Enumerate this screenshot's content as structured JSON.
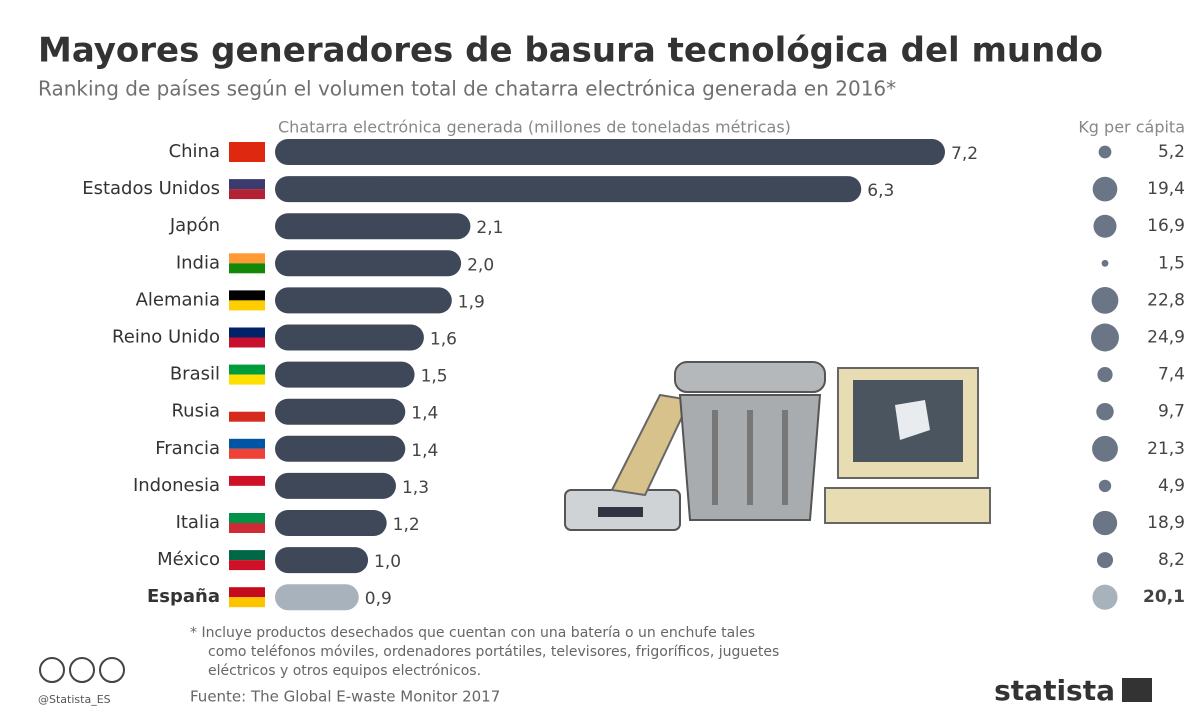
{
  "chart_data": {
    "type": "bar",
    "title": "Mayores generadores de basura tecnológica del mundo",
    "subtitle": "Ranking de países según el volumen total de chatarra electrónica generada en 2016*",
    "x_label": "Chatarra electrónica generada (millones de toneladas métricas)",
    "size_label": "Kg per cápita",
    "categories": [
      "China",
      "Estados Unidos",
      "Japón",
      "India",
      "Alemania",
      "Reino Unido",
      "Brasil",
      "Rusia",
      "Francia",
      "Indonesia",
      "Italia",
      "México",
      "España"
    ],
    "values": [
      7.2,
      6.3,
      2.1,
      2.0,
      1.9,
      1.6,
      1.5,
      1.4,
      1.4,
      1.3,
      1.2,
      1.0,
      0.9
    ],
    "value_labels": [
      "7,2",
      "6,3",
      "2,1",
      "2,0",
      "1,9",
      "1,6",
      "1,5",
      "1,4",
      "1,4",
      "1,3",
      "1,2",
      "1,0",
      "0,9"
    ],
    "per_capita": [
      5.2,
      19.4,
      16.9,
      1.5,
      22.8,
      24.9,
      7.4,
      9.7,
      21.3,
      4.9,
      18.9,
      8.2,
      20.1
    ],
    "per_capita_labels": [
      "5,2",
      "19,4",
      "16,9",
      "1,5",
      "22,8",
      "24,9",
      "7,4",
      "9,7",
      "21,3",
      "4,9",
      "18,9",
      "8,2",
      "20,1"
    ],
    "bar_colors": [
      "#3e4859",
      "#3e4859",
      "#3e4859",
      "#3e4859",
      "#3e4859",
      "#3e4859",
      "#3e4859",
      "#3e4859",
      "#3e4859",
      "#3e4859",
      "#3e4859",
      "#3e4859",
      "#a7b2bd"
    ],
    "bubble_colors": [
      "#6a7586",
      "#6a7586",
      "#6a7586",
      "#6a7586",
      "#6a7586",
      "#6a7586",
      "#6a7586",
      "#6a7586",
      "#6a7586",
      "#6a7586",
      "#6a7586",
      "#6a7586",
      "#a7b2bd"
    ],
    "bold_categories": [
      false,
      false,
      false,
      false,
      false,
      false,
      false,
      false,
      false,
      false,
      false,
      false,
      true
    ],
    "footnote_lines": [
      "* Incluye productos desechados que cuentan con una batería o un enchufe tales",
      "como teléfonos móviles, ordenadores portátiles, televisores, frigoríficos, juguetes",
      "eléctricos y otros equipos electrónicos."
    ],
    "handle": "@Statista_ES",
    "source": "Fuente: The Global E-waste Monitor 2017",
    "logo": "statista"
  }
}
